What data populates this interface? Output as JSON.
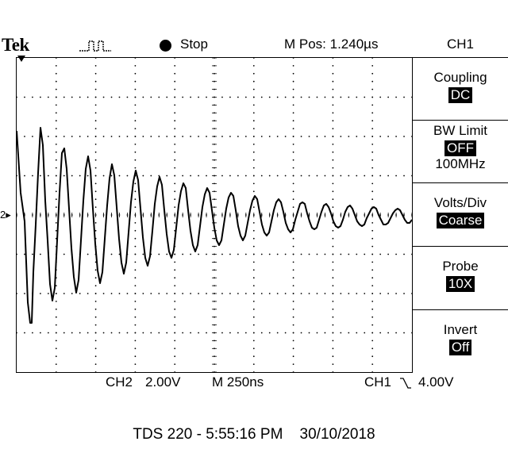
{
  "header": {
    "brand": "Tek",
    "run_state": "Stop",
    "horizontal_position": "M Pos: 1.240µs",
    "menu_title": "CH1"
  },
  "side_menu": {
    "items": [
      {
        "label": "Coupling",
        "value": "DC"
      },
      {
        "label": "BW Limit",
        "value": "OFF",
        "sub": "100MHz"
      },
      {
        "label": "Volts/Div",
        "value": "Coarse"
      },
      {
        "label": "Probe",
        "value": "10X"
      },
      {
        "label": "Invert",
        "value": "Off"
      }
    ]
  },
  "screen": {
    "channel_level_marker": "2▸",
    "waveform": {
      "description_color": "#000000",
      "samples": [
        0,
        108,
        5,
        30,
        10,
        -6,
        14,
        -108,
        17,
        -134,
        19,
        -134,
        21,
        -70,
        24,
        -10,
        27,
        55,
        30,
        112,
        33,
        90,
        36,
        20,
        39,
        -30,
        42,
        -85,
        45,
        -106,
        48,
        -90,
        51,
        -30,
        54,
        30,
        57,
        80,
        60,
        86,
        63,
        60,
        66,
        10,
        69,
        -40,
        72,
        -76,
        75,
        -96,
        78,
        -80,
        81,
        -30,
        84,
        20,
        87,
        60,
        90,
        76,
        93,
        58,
        96,
        10,
        99,
        -34,
        102,
        -68,
        105,
        -84,
        108,
        -70,
        111,
        -28,
        114,
        14,
        117,
        48,
        120,
        66,
        123,
        52,
        126,
        12,
        129,
        -28,
        132,
        -58,
        135,
        -72,
        138,
        -58,
        141,
        -20,
        144,
        18,
        147,
        44,
        150,
        58,
        153,
        46,
        156,
        10,
        159,
        -26,
        162,
        -52,
        165,
        -62,
        168,
        -50,
        171,
        -18,
        174,
        16,
        177,
        38,
        180,
        50,
        183,
        40,
        186,
        8,
        189,
        -22,
        192,
        -44,
        195,
        -52,
        198,
        -42,
        201,
        -14,
        204,
        14,
        207,
        32,
        210,
        42,
        213,
        36,
        216,
        8,
        219,
        -18,
        222,
        -36,
        225,
        -44,
        228,
        -36,
        231,
        -12,
        234,
        12,
        237,
        28,
        240,
        36,
        243,
        30,
        246,
        8,
        249,
        -14,
        252,
        -30,
        255,
        -36,
        258,
        -30,
        261,
        -10,
        264,
        10,
        267,
        24,
        270,
        30,
        273,
        26,
        276,
        8,
        279,
        -12,
        282,
        -24,
        285,
        -30,
        288,
        -24,
        291,
        -8,
        294,
        8,
        297,
        20,
        300,
        26,
        303,
        22,
        306,
        6,
        309,
        -10,
        312,
        -20,
        315,
        -24,
        318,
        -20,
        321,
        -6,
        324,
        8,
        327,
        18,
        330,
        22,
        333,
        18,
        336,
        6,
        339,
        -8,
        342,
        -16,
        345,
        -20,
        348,
        -16,
        351,
        -4,
        354,
        6,
        357,
        16,
        360,
        18,
        363,
        16,
        366,
        4,
        369,
        -6,
        372,
        -14,
        375,
        -16,
        378,
        -14,
        381,
        -4,
        384,
        6,
        387,
        14,
        390,
        16,
        393,
        12,
        396,
        4,
        399,
        -6,
        402,
        -12,
        405,
        -14,
        408,
        -12,
        411,
        -4,
        414,
        6,
        417,
        12,
        420,
        14,
        423,
        10,
        426,
        2,
        429,
        -6,
        432,
        -10,
        435,
        -12,
        438,
        -10,
        441,
        -2,
        444,
        4,
        447,
        10,
        450,
        12,
        453,
        10,
        456,
        2,
        459,
        -4,
        462,
        -10,
        465,
        -10,
        468,
        -8,
        471,
        -2,
        474,
        4,
        477,
        8,
        480,
        10,
        483,
        8,
        486,
        2,
        489,
        -4,
        492,
        -8,
        495,
        -8,
        498,
        -4
      ]
    }
  },
  "status": {
    "ch2_label": "CH2",
    "ch2_scale": "2.00V",
    "timebase": "M 250ns",
    "trigger_source": "CH1",
    "trigger_slope_icon": "falling-edge-icon",
    "trigger_level": "4.00V"
  },
  "footer": {
    "model_time": "TDS 220 - 5:55:16 PM",
    "date": "30/10/2018"
  }
}
